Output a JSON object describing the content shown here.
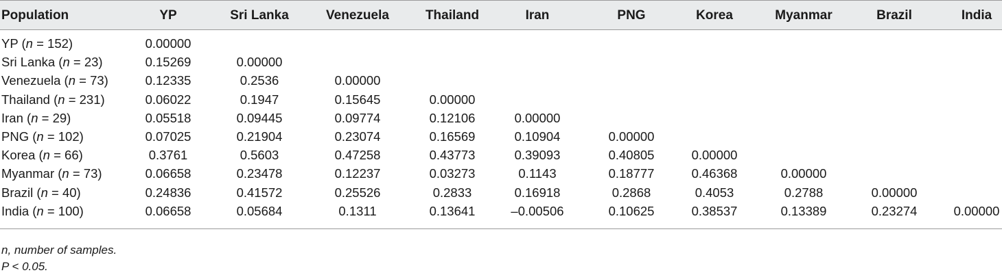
{
  "table": {
    "headers": [
      "Population",
      "YP",
      "Sri Lanka",
      "Venezuela",
      "Thailand",
      "Iran",
      "PNG",
      "Korea",
      "Myanmar",
      "Brazil",
      "India"
    ],
    "rows": [
      {
        "name": "YP",
        "n": "152",
        "values": [
          "0.00000"
        ]
      },
      {
        "name": "Sri Lanka",
        "n": "23",
        "values": [
          "0.15269",
          "0.00000"
        ]
      },
      {
        "name": "Venezuela",
        "n": "73",
        "values": [
          "0.12335",
          "0.2536",
          "0.00000"
        ]
      },
      {
        "name": "Thailand",
        "n": "231",
        "values": [
          "0.06022",
          "0.1947",
          "0.15645",
          "0.00000"
        ]
      },
      {
        "name": "Iran",
        "n": "29",
        "values": [
          "0.05518",
          "0.09445",
          "0.09774",
          "0.12106",
          "0.00000"
        ]
      },
      {
        "name": "PNG",
        "n": "102",
        "values": [
          "0.07025",
          "0.21904",
          "0.23074",
          "0.16569",
          "0.10904",
          "0.00000"
        ]
      },
      {
        "name": "Korea",
        "n": "66",
        "values": [
          "0.3761",
          "0.5603",
          "0.47258",
          "0.43773",
          "0.39093",
          "0.40805",
          "0.00000"
        ]
      },
      {
        "name": "Myanmar",
        "n": "73",
        "values": [
          "0.06658",
          "0.23478",
          "0.12237",
          "0.03273",
          "0.1143",
          "0.18777",
          "0.46368",
          "0.00000"
        ]
      },
      {
        "name": "Brazil",
        "n": "40",
        "values": [
          "0.24836",
          "0.41572",
          "0.25526",
          "0.2833",
          "0.16918",
          "0.2868",
          "0.4053",
          "0.2788",
          "0.00000"
        ]
      },
      {
        "name": "India",
        "n": "100",
        "values": [
          "0.06658",
          "0.05684",
          "0.1311",
          "0.13641",
          "–0.00506",
          "0.10625",
          "0.38537",
          "0.13389",
          "0.23274",
          "0.00000"
        ]
      }
    ]
  },
  "notes": {
    "line1": "n, number of samples.",
    "line2": "P < 0.05."
  }
}
